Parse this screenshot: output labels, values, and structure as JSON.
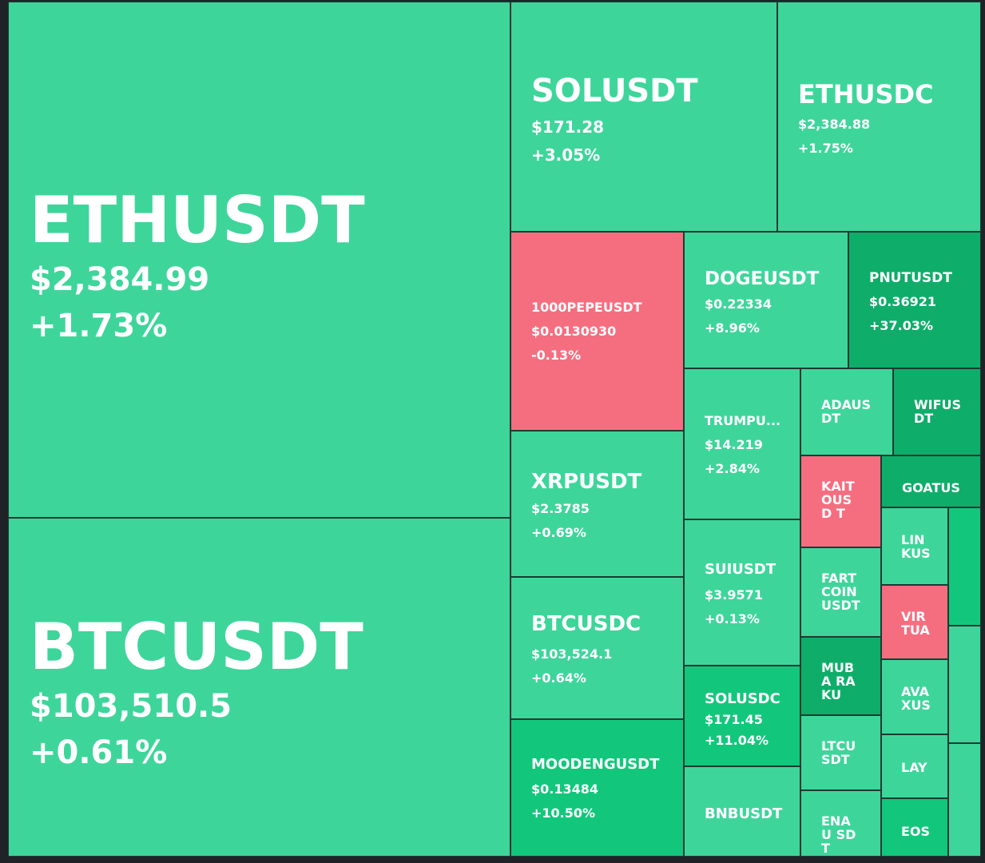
{
  "colors": {
    "up": "#3ed59b",
    "strong_up": "#12c77c",
    "very_strong_up": "#0fad6a",
    "down": "#f56e80",
    "background": "#1f2328"
  },
  "tiles": {
    "ethusdt": {
      "symbol": "ETHUSDT",
      "price": "$2,384.99",
      "change": "+1.73%"
    },
    "btcusdt": {
      "symbol": "BTCUSDT",
      "price": "$103,510.5",
      "change": "+0.61%"
    },
    "solusdt": {
      "symbol": "SOLUSDT",
      "price": "$171.28",
      "change": "+3.05%"
    },
    "ethusdc": {
      "symbol": "ETHUSDC",
      "price": "$2,384.88",
      "change": "+1.75%"
    },
    "pepe": {
      "symbol": "1000PEPEUSDT",
      "price": "$0.0130930",
      "change": "-0.13%"
    },
    "dogeusdt": {
      "symbol": "DOGEUSDT",
      "price": "$0.22334",
      "change": "+8.96%"
    },
    "pnutusdt": {
      "symbol": "PNUTUSDT",
      "price": "$0.36921",
      "change": "+37.03%"
    },
    "xrpusdt": {
      "symbol": "XRPUSDT",
      "price": "$2.3785",
      "change": "+0.69%"
    },
    "trumpusdt": {
      "symbol": "TRUMPU...",
      "price": "$14.219",
      "change": "+2.84%"
    },
    "adausdt": {
      "symbol": "ADAUS DT"
    },
    "wifusdt": {
      "symbol": "WIFUS DT"
    },
    "kaitousdt": {
      "symbol": "KAIT OUSD T"
    },
    "goatusdt": {
      "symbol": "GOATUS"
    },
    "suiusdt": {
      "symbol": "SUIUSDT",
      "price": "$3.9571",
      "change": "+0.13%"
    },
    "btcusdc": {
      "symbol": "BTCUSDC",
      "price": "$103,524.1",
      "change": "+0.64%"
    },
    "linkusdt": {
      "symbol": "LIN KUS"
    },
    "fartcoinusdt": {
      "symbol": "FART COIN USDT"
    },
    "virtualusdt": {
      "symbol": "VIR TUA"
    },
    "mubarakusdt": {
      "symbol": "MUBA RAKU"
    },
    "solusdc": {
      "symbol": "SOLUSDC",
      "price": "$171.45",
      "change": "+11.04%"
    },
    "avaxusdt": {
      "symbol": "AVA XUS"
    },
    "ltcusdt": {
      "symbol": "LTCU SDT"
    },
    "layusdt": {
      "symbol": "LAY"
    },
    "moodengusdt": {
      "symbol": "MOODENGUSDT",
      "price": "$0.13484",
      "change": "+10.50%"
    },
    "bnbusdt": {
      "symbol": "BNBUSDT"
    },
    "enausdt": {
      "symbol": "ENAU SDT"
    },
    "eosusdt": {
      "symbol": "EOS"
    }
  }
}
